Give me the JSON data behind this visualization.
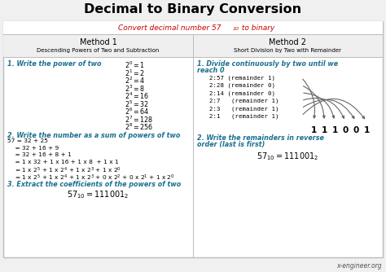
{
  "title": "Decimal to Binary Conversion",
  "bg_color": "#f0f0f0",
  "table_bg": "#ffffff",
  "header_bg": "#efefef",
  "subtitle_color": "#cc0000",
  "blue_color": "#1a7090",
  "footer": "x-engineer.org",
  "method1_header": "Method 1",
  "method1_sub": "Descending Powers of Two and Subtraction",
  "method2_header": "Method 2",
  "method2_sub": "Short Division by Two with Remainder",
  "remainders": [
    "1",
    "1",
    "1",
    "0",
    "0",
    "1"
  ]
}
